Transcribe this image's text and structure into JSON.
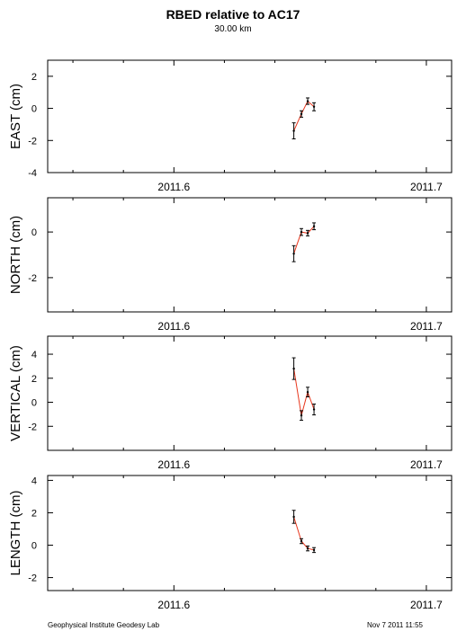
{
  "title": "RBED relative to AC17",
  "subtitle": "30.00 km",
  "footer_left": "Geophysical Institute Geodesy Lab",
  "footer_right": "Nov 7 2011 11:55",
  "chart_data": [
    {
      "type": "line",
      "ylabel": "EAST (cm)",
      "xlim": [
        2011.55,
        2011.71
      ],
      "ylim": [
        -4,
        3
      ],
      "yticks": [
        -4,
        -2,
        0,
        2
      ],
      "xtick_labels": [
        "2011.6",
        "2011.7"
      ],
      "xtick_values": [
        2011.6,
        2011.7
      ],
      "points": [
        {
          "x": 2011.6475,
          "y": -1.4,
          "err": 0.5
        },
        {
          "x": 2011.6505,
          "y": -0.35,
          "err": 0.2
        },
        {
          "x": 2011.653,
          "y": 0.45,
          "err": 0.2
        },
        {
          "x": 2011.6555,
          "y": 0.1,
          "err": 0.25
        }
      ]
    },
    {
      "type": "line",
      "ylabel": "NORTH (cm)",
      "xlim": [
        2011.55,
        2011.71
      ],
      "ylim": [
        -3.5,
        1.5
      ],
      "yticks": [
        -2,
        0
      ],
      "xtick_labels": [
        "2011.6",
        "2011.7"
      ],
      "xtick_values": [
        2011.6,
        2011.7
      ],
      "points": [
        {
          "x": 2011.6475,
          "y": -0.95,
          "err": 0.35
        },
        {
          "x": 2011.6505,
          "y": 0.0,
          "err": 0.15
        },
        {
          "x": 2011.653,
          "y": -0.05,
          "err": 0.12
        },
        {
          "x": 2011.6555,
          "y": 0.25,
          "err": 0.15
        }
      ]
    },
    {
      "type": "line",
      "ylabel": "VERTICAL (cm)",
      "xlim": [
        2011.55,
        2011.71
      ],
      "ylim": [
        -4,
        5.5
      ],
      "yticks": [
        -2,
        0,
        2,
        4
      ],
      "xtick_labels": [
        "2011.6",
        "2011.7"
      ],
      "xtick_values": [
        2011.6,
        2011.7
      ],
      "points": [
        {
          "x": 2011.6475,
          "y": 2.8,
          "err": 0.9
        },
        {
          "x": 2011.6505,
          "y": -1.1,
          "err": 0.4
        },
        {
          "x": 2011.653,
          "y": 0.85,
          "err": 0.4
        },
        {
          "x": 2011.6555,
          "y": -0.6,
          "err": 0.45
        }
      ]
    },
    {
      "type": "line",
      "ylabel": "LENGTH (cm)",
      "xlim": [
        2011.55,
        2011.71
      ],
      "ylim": [
        -2.8,
        4.3
      ],
      "yticks": [
        -2,
        0,
        2,
        4
      ],
      "xtick_labels": [
        "2011.6",
        "2011.7"
      ],
      "xtick_values": [
        2011.6,
        2011.7
      ],
      "points": [
        {
          "x": 2011.6475,
          "y": 1.75,
          "err": 0.4
        },
        {
          "x": 2011.6505,
          "y": 0.25,
          "err": 0.15
        },
        {
          "x": 2011.653,
          "y": -0.2,
          "err": 0.15
        },
        {
          "x": 2011.6555,
          "y": -0.3,
          "err": 0.15
        }
      ]
    }
  ],
  "colors": {
    "line": "#e8361c",
    "errorbar": "#000000",
    "axis": "#000000"
  }
}
